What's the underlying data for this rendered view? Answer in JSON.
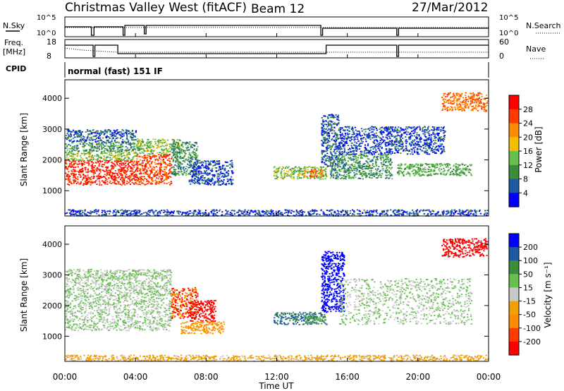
{
  "header": {
    "site": "Christmas Valley West (fitACF)",
    "beam": "Beam 12",
    "date": "27/Mar/2012"
  },
  "top_panels": {
    "nsky_label": "N.Sky",
    "nsky_ticks": [
      "10^5",
      "10^0"
    ],
    "nsearch_label": "N.Search",
    "nsearch_ticks": [
      "10^5",
      "10^0"
    ],
    "freq_label": "Freq.",
    "freq_unit": "[MHz]",
    "freq_ticks": [
      "18",
      "8"
    ],
    "nave_label": "Nave",
    "nave_ticks": [
      "60",
      "0"
    ],
    "cpid_label": "CPID",
    "cpid_text": "normal (fast) 151 IF"
  },
  "colors": {
    "power": [
      "#0000ff",
      "#1e5aa0",
      "#3c8c3c",
      "#66c050",
      "#f0c000",
      "#ff8c00",
      "#ff3c00",
      "#ff0000"
    ],
    "velocity": [
      "#0000ff",
      "#1e5aa0",
      "#3c8c3c",
      "#66c050",
      "#c8c8c8",
      "#f0a000",
      "#ff8c00",
      "#ff3c00",
      "#ff0000"
    ],
    "ground_scatter": "#b4b4b4"
  },
  "chart_data": [
    {
      "type": "heatmap",
      "name": "power",
      "ylabel": "Slant Range [km]",
      "yticks": [
        "1000",
        "2000",
        "3000",
        "4000"
      ],
      "ylim": [
        180,
        4600
      ],
      "colorbar_label": "Power [dB]",
      "colorbar_ticks": [
        "4",
        "8",
        "12",
        "16",
        "20",
        "24",
        "28"
      ],
      "xlim_hours": [
        0,
        24
      ],
      "regions": [
        {
          "t": [
            0.0,
            4.0
          ],
          "r": [
            1200,
            2000
          ],
          "level": 28
        },
        {
          "t": [
            0.0,
            4.0
          ],
          "r": [
            2000,
            2300
          ],
          "level": 14
        },
        {
          "t": [
            0.0,
            4.0
          ],
          "r": [
            2300,
            2600
          ],
          "level": 10
        },
        {
          "t": [
            0.0,
            4.0
          ],
          "r": [
            2600,
            3000
          ],
          "level": 6
        },
        {
          "t": [
            4.0,
            6.0
          ],
          "r": [
            1200,
            2200
          ],
          "level": 26
        },
        {
          "t": [
            4.0,
            6.5
          ],
          "r": [
            2200,
            2700
          ],
          "level": 14
        },
        {
          "t": [
            6.0,
            7.5
          ],
          "r": [
            1500,
            2600
          ],
          "level": 10
        },
        {
          "t": [
            7.0,
            9.5
          ],
          "r": [
            1200,
            2000
          ],
          "level": 5
        },
        {
          "t": [
            11.8,
            14.8
          ],
          "r": [
            1400,
            1800
          ],
          "level": 14
        },
        {
          "t": [
            13.5,
            14.6
          ],
          "r": [
            1450,
            1700
          ],
          "level": 24
        },
        {
          "t": [
            14.5,
            15.5
          ],
          "r": [
            1800,
            3500
          ],
          "level": 6
        },
        {
          "t": [
            15.0,
            18.5
          ],
          "r": [
            1400,
            2200
          ],
          "level": 10
        },
        {
          "t": [
            15.5,
            21.5
          ],
          "r": [
            2200,
            3100
          ],
          "level": 5
        },
        {
          "t": [
            18.8,
            23.0
          ],
          "r": [
            1500,
            1900
          ],
          "level": 12
        },
        {
          "t": [
            21.3,
            23.9
          ],
          "r": [
            3600,
            4200
          ],
          "level": 24
        },
        {
          "t": [
            0.0,
            24.0
          ],
          "r": [
            200,
            400
          ],
          "level": 5
        }
      ]
    },
    {
      "type": "heatmap",
      "name": "velocity",
      "ylabel": "Slant Range [km]",
      "yticks": [
        "1000",
        "2000",
        "3000",
        "4000"
      ],
      "ylim": [
        180,
        4600
      ],
      "colorbar_label": "Velocity [m s⁻¹]",
      "colorbar_ticks": [
        "200",
        "100",
        "50",
        "15",
        "-15",
        "-50",
        "-100",
        "-200"
      ],
      "xlabel": "Time UT",
      "xticks": [
        "00:00",
        "04:00",
        "08:00",
        "12:00",
        "16:00",
        "20:00",
        "00:00"
      ],
      "xlim_hours": [
        0,
        24
      ],
      "regions": [
        {
          "t": [
            0.0,
            6.0
          ],
          "r": [
            1200,
            2300
          ],
          "level": 0
        },
        {
          "t": [
            0.0,
            6.0
          ],
          "r": [
            2300,
            3200
          ],
          "level": 0
        },
        {
          "t": [
            6.0,
            7.5
          ],
          "r": [
            1600,
            2600
          ],
          "level": -150
        },
        {
          "t": [
            7.0,
            8.5
          ],
          "r": [
            1500,
            2200
          ],
          "level": -200
        },
        {
          "t": [
            6.5,
            9.0
          ],
          "r": [
            1100,
            1500
          ],
          "level": -80
        },
        {
          "t": [
            11.8,
            14.8
          ],
          "r": [
            1400,
            1800
          ],
          "level": 80
        },
        {
          "t": [
            13.5,
            14.6
          ],
          "r": [
            1450,
            1700
          ],
          "level": 30
        },
        {
          "t": [
            14.5,
            15.8
          ],
          "r": [
            1800,
            3800
          ],
          "level": 200
        },
        {
          "t": [
            15.5,
            23.0
          ],
          "r": [
            1400,
            2900
          ],
          "level": 0
        },
        {
          "t": [
            21.3,
            23.9
          ],
          "r": [
            3600,
            4200
          ],
          "level": -200
        },
        {
          "t": [
            0.0,
            24.0
          ],
          "r": [
            200,
            400
          ],
          "level": -50
        }
      ]
    }
  ]
}
